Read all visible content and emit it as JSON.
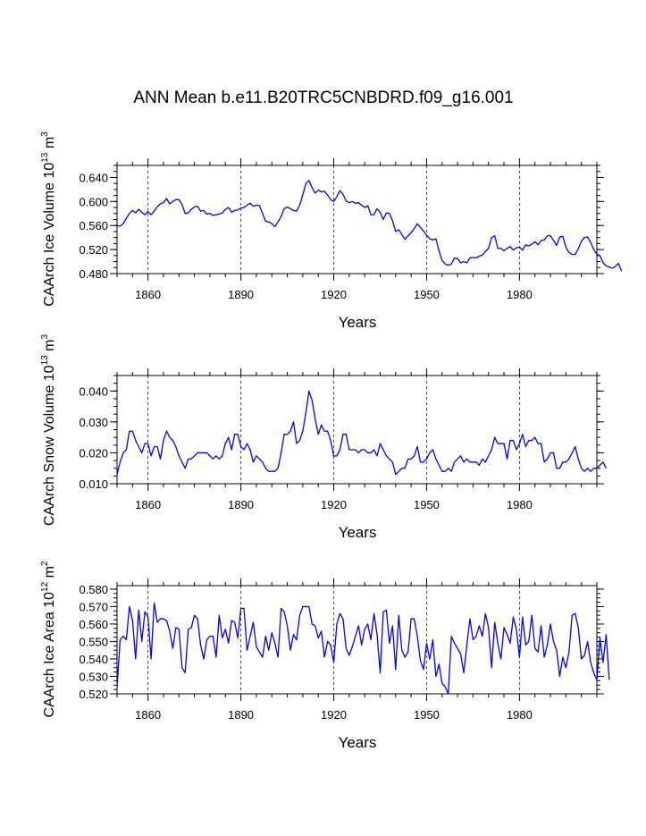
{
  "figure": {
    "title": "ANN Mean b.e11.B20TRC5CNBDRD.f09_g16.001",
    "line_color": "#0000ff",
    "axis_color": "#000000"
  },
  "chart_data": [
    {
      "type": "line",
      "ylabel_main": "CAArch Ice Volume 10",
      "ylabel_exp": "13",
      "ylabel_tail": " m",
      "ylabel_exp2": "3",
      "xlabel": "Years",
      "xlim": [
        1850,
        2005
      ],
      "ylim": [
        0.48,
        0.66
      ],
      "yticks": [
        0.48,
        0.52,
        0.56,
        0.6,
        0.64
      ],
      "yticklabels": [
        "0.480",
        "0.520",
        "0.560",
        "0.600",
        "0.640"
      ],
      "xticks": [
        1860,
        1890,
        1920,
        1950,
        1980
      ],
      "xticklabels": [
        "1860",
        "1890",
        "1920",
        "1950",
        "1980"
      ],
      "x_start": 1850,
      "values": [
        0.56,
        0.559,
        0.563,
        0.572,
        0.58,
        0.585,
        0.581,
        0.587,
        0.582,
        0.578,
        0.583,
        0.578,
        0.584,
        0.591,
        0.596,
        0.598,
        0.605,
        0.596,
        0.6,
        0.603,
        0.603,
        0.595,
        0.58,
        0.581,
        0.587,
        0.591,
        0.592,
        0.584,
        0.585,
        0.579,
        0.58,
        0.577,
        0.578,
        0.579,
        0.581,
        0.587,
        0.59,
        0.582,
        0.585,
        0.586,
        0.589,
        0.59,
        0.594,
        0.597,
        0.592,
        0.594,
        0.593,
        0.58,
        0.567,
        0.566,
        0.563,
        0.558,
        0.566,
        0.575,
        0.588,
        0.591,
        0.588,
        0.585,
        0.584,
        0.594,
        0.611,
        0.63,
        0.635,
        0.623,
        0.614,
        0.619,
        0.616,
        0.617,
        0.611,
        0.603,
        0.6,
        0.608,
        0.618,
        0.612,
        0.601,
        0.598,
        0.6,
        0.597,
        0.598,
        0.594,
        0.59,
        0.593,
        0.578,
        0.578,
        0.588,
        0.582,
        0.57,
        0.581,
        0.58,
        0.568,
        0.55,
        0.553,
        0.545,
        0.537,
        0.543,
        0.548,
        0.555,
        0.563,
        0.557,
        0.551,
        0.544,
        0.538,
        0.536,
        0.538,
        0.518,
        0.502,
        0.496,
        0.494,
        0.496,
        0.506,
        0.505,
        0.498,
        0.5,
        0.498,
        0.506,
        0.507,
        0.506,
        0.509,
        0.511,
        0.517,
        0.522,
        0.54,
        0.543,
        0.522,
        0.522,
        0.518,
        0.522,
        0.525,
        0.519,
        0.523,
        0.524,
        0.519,
        0.528,
        0.526,
        0.529,
        0.533,
        0.528,
        0.535,
        0.536,
        0.543,
        0.543,
        0.535,
        0.527,
        0.541,
        0.542,
        0.524,
        0.515,
        0.512,
        0.512,
        0.521,
        0.534,
        0.54,
        0.541,
        0.532,
        0.52,
        0.512,
        0.51,
        0.498,
        0.493,
        0.491,
        0.489,
        0.492,
        0.497,
        0.484
      ]
    },
    {
      "type": "line",
      "ylabel_main": "CAArch Snow Volume 10",
      "ylabel_exp": "13",
      "ylabel_tail": " m",
      "ylabel_exp2": "3",
      "xlabel": "Years",
      "xlim": [
        1850,
        2005
      ],
      "ylim": [
        0.01,
        0.045
      ],
      "yticks": [
        0.01,
        0.02,
        0.03,
        0.04
      ],
      "yticklabels": [
        "0.010",
        "0.020",
        "0.030",
        "0.040"
      ],
      "xticks": [
        1860,
        1890,
        1920,
        1950,
        1980
      ],
      "xticklabels": [
        "1860",
        "1890",
        "1920",
        "1950",
        "1980"
      ],
      "x_start": 1850,
      "values": [
        0.013,
        0.017,
        0.02,
        0.021,
        0.027,
        0.027,
        0.024,
        0.022,
        0.02,
        0.023,
        0.023,
        0.019,
        0.022,
        0.022,
        0.018,
        0.024,
        0.027,
        0.025,
        0.024,
        0.022,
        0.019,
        0.017,
        0.015,
        0.018,
        0.018,
        0.019,
        0.02,
        0.02,
        0.02,
        0.02,
        0.019,
        0.018,
        0.019,
        0.018,
        0.019,
        0.023,
        0.025,
        0.021,
        0.026,
        0.026,
        0.022,
        0.021,
        0.023,
        0.021,
        0.017,
        0.019,
        0.018,
        0.017,
        0.015,
        0.014,
        0.014,
        0.014,
        0.015,
        0.02,
        0.026,
        0.026,
        0.027,
        0.03,
        0.023,
        0.024,
        0.027,
        0.033,
        0.04,
        0.037,
        0.031,
        0.026,
        0.029,
        0.027,
        0.027,
        0.024,
        0.019,
        0.019,
        0.021,
        0.026,
        0.026,
        0.021,
        0.021,
        0.021,
        0.02,
        0.021,
        0.021,
        0.02,
        0.02,
        0.021,
        0.019,
        0.023,
        0.021,
        0.019,
        0.018,
        0.017,
        0.013,
        0.014,
        0.015,
        0.015,
        0.018,
        0.018,
        0.019,
        0.022,
        0.017,
        0.017,
        0.018,
        0.02,
        0.021,
        0.018,
        0.016,
        0.014,
        0.014,
        0.015,
        0.014,
        0.017,
        0.018,
        0.019,
        0.017,
        0.018,
        0.017,
        0.017,
        0.017,
        0.016,
        0.018,
        0.017,
        0.019,
        0.021,
        0.025,
        0.023,
        0.023,
        0.023,
        0.018,
        0.024,
        0.024,
        0.021,
        0.023,
        0.026,
        0.022,
        0.024,
        0.024,
        0.025,
        0.023,
        0.023,
        0.017,
        0.018,
        0.02,
        0.02,
        0.015,
        0.015,
        0.017,
        0.017,
        0.018,
        0.02,
        0.022,
        0.018,
        0.015,
        0.014,
        0.015,
        0.014,
        0.015,
        0.015,
        0.016,
        0.017,
        0.015
      ]
    },
    {
      "type": "line",
      "ylabel_main": "CAArch Ice Area 10",
      "ylabel_exp": "12",
      "ylabel_tail": " m",
      "ylabel_exp2": "2",
      "xlabel": "Years",
      "xlim": [
        1850,
        2005
      ],
      "ylim": [
        0.52,
        0.582
      ],
      "yticks": [
        0.52,
        0.53,
        0.54,
        0.55,
        0.56,
        0.57,
        0.58
      ],
      "yticklabels": [
        "0.520",
        "0.530",
        "0.540",
        "0.550",
        "0.560",
        "0.570",
        "0.580"
      ],
      "xticks": [
        1860,
        1890,
        1920,
        1950,
        1980
      ],
      "xticklabels": [
        "1860",
        "1890",
        "1920",
        "1950",
        "1980"
      ],
      "x_start": 1850,
      "values": [
        0.524,
        0.551,
        0.553,
        0.551,
        0.57,
        0.562,
        0.54,
        0.568,
        0.55,
        0.567,
        0.564,
        0.54,
        0.572,
        0.561,
        0.563,
        0.563,
        0.562,
        0.556,
        0.546,
        0.558,
        0.557,
        0.535,
        0.532,
        0.557,
        0.558,
        0.565,
        0.563,
        0.548,
        0.54,
        0.551,
        0.553,
        0.553,
        0.541,
        0.565,
        0.552,
        0.557,
        0.549,
        0.562,
        0.561,
        0.552,
        0.569,
        0.569,
        0.545,
        0.553,
        0.561,
        0.547,
        0.544,
        0.541,
        0.553,
        0.545,
        0.555,
        0.549,
        0.541,
        0.569,
        0.567,
        0.559,
        0.545,
        0.554,
        0.551,
        0.565,
        0.57,
        0.57,
        0.57,
        0.56,
        0.559,
        0.552,
        0.556,
        0.541,
        0.55,
        0.548,
        0.538,
        0.56,
        0.566,
        0.563,
        0.546,
        0.542,
        0.547,
        0.553,
        0.559,
        0.548,
        0.557,
        0.56,
        0.551,
        0.566,
        0.554,
        0.532,
        0.567,
        0.568,
        0.549,
        0.559,
        0.534,
        0.565,
        0.545,
        0.541,
        0.544,
        0.563,
        0.563,
        0.553,
        0.539,
        0.534,
        0.549,
        0.54,
        0.551,
        0.53,
        0.537,
        0.526,
        0.524,
        0.52,
        0.553,
        0.549,
        0.546,
        0.543,
        0.532,
        0.548,
        0.563,
        0.551,
        0.553,
        0.559,
        0.553,
        0.566,
        0.558,
        0.535,
        0.561,
        0.549,
        0.54,
        0.558,
        0.554,
        0.549,
        0.564,
        0.557,
        0.541,
        0.564,
        0.548,
        0.55,
        0.565,
        0.546,
        0.544,
        0.559,
        0.541,
        0.548,
        0.56,
        0.55,
        0.545,
        0.53,
        0.541,
        0.535,
        0.544,
        0.565,
        0.566,
        0.558,
        0.54,
        0.542,
        0.55,
        0.538,
        0.532,
        0.528,
        0.552,
        0.538,
        0.554,
        0.528
      ]
    }
  ]
}
